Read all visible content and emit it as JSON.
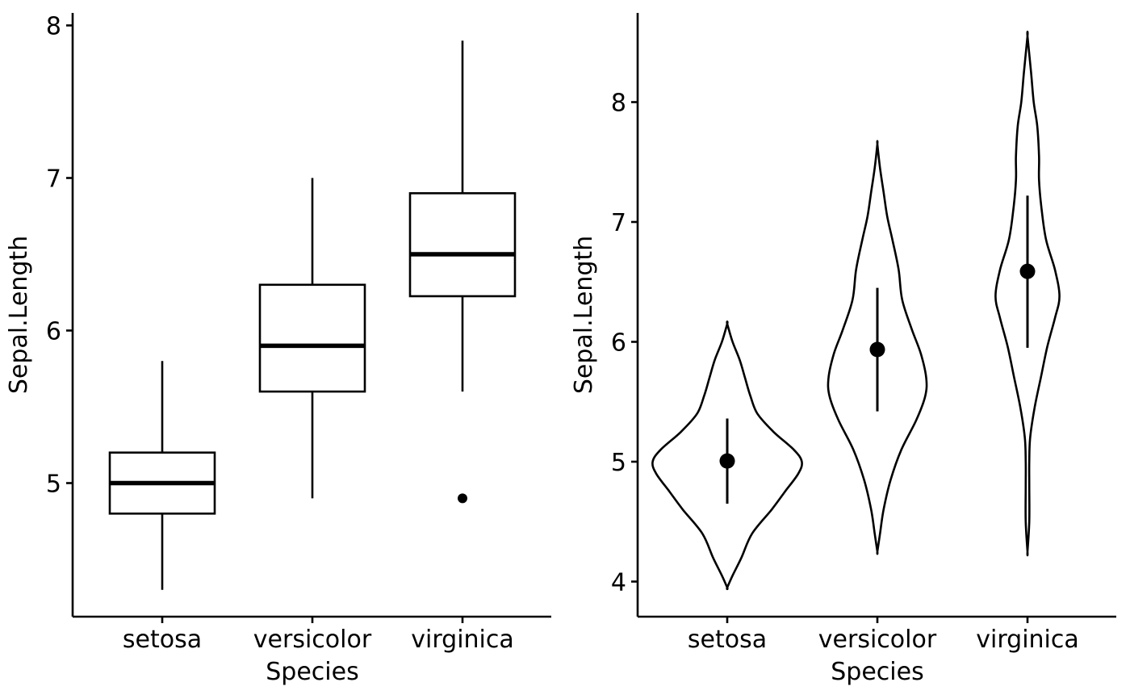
{
  "chart_data": [
    {
      "type": "box",
      "xlabel": "Species",
      "ylabel": "Sepal.Length",
      "ylim": [
        4.0,
        8.0
      ],
      "yticks": [
        "5",
        "6",
        "7",
        "8"
      ],
      "categories": [
        "setosa",
        "versicolor",
        "virginica"
      ],
      "boxes": [
        {
          "min": 4.3,
          "q1": 4.8,
          "median": 5.0,
          "q3": 5.2,
          "max": 5.8,
          "outliers": []
        },
        {
          "min": 4.9,
          "q1": 5.6,
          "median": 5.9,
          "q3": 6.3,
          "max": 7.0,
          "outliers": []
        },
        {
          "min": 5.6,
          "q1": 6.225,
          "median": 6.5,
          "q3": 6.9,
          "max": 7.9,
          "outliers": [
            4.9
          ]
        }
      ],
      "grid": false,
      "legend": "none"
    },
    {
      "type": "violin",
      "xlabel": "Species",
      "ylabel": "Sepal.Length",
      "ylim": [
        3.8,
        8.6
      ],
      "yticks": [
        "4",
        "5",
        "6",
        "7",
        "8"
      ],
      "categories": [
        "setosa",
        "versicolor",
        "virginica"
      ],
      "violins": [
        {
          "range": [
            3.95,
            6.15
          ],
          "profile": [
            [
              3.95,
              0.0
            ],
            [
              4.05,
              0.06
            ],
            [
              4.2,
              0.16
            ],
            [
              4.4,
              0.28
            ],
            [
              4.6,
              0.5
            ],
            [
              4.75,
              0.65
            ],
            [
              4.9,
              0.8
            ],
            [
              5.0,
              0.84
            ],
            [
              5.1,
              0.75
            ],
            [
              5.25,
              0.52
            ],
            [
              5.4,
              0.34
            ],
            [
              5.55,
              0.26
            ],
            [
              5.7,
              0.2
            ],
            [
              5.85,
              0.14
            ],
            [
              6.0,
              0.06
            ],
            [
              6.15,
              0.0
            ]
          ],
          "mean": 5.006,
          "sd_low": 4.65,
          "sd_high": 5.36
        },
        {
          "range": [
            4.25,
            7.65
          ],
          "profile": [
            [
              4.25,
              0.0
            ],
            [
              4.4,
              0.03
            ],
            [
              4.6,
              0.07
            ],
            [
              4.85,
              0.15
            ],
            [
              5.1,
              0.27
            ],
            [
              5.35,
              0.44
            ],
            [
              5.55,
              0.54
            ],
            [
              5.7,
              0.55
            ],
            [
              5.9,
              0.49
            ],
            [
              6.1,
              0.39
            ],
            [
              6.35,
              0.28
            ],
            [
              6.6,
              0.24
            ],
            [
              6.85,
              0.17
            ],
            [
              7.05,
              0.11
            ],
            [
              7.25,
              0.07
            ],
            [
              7.45,
              0.03
            ],
            [
              7.65,
              0.0
            ]
          ],
          "mean": 5.936,
          "sd_low": 5.42,
          "sd_high": 6.45
        },
        {
          "range": [
            4.25,
            8.55
          ],
          "profile": [
            [
              4.25,
              0.0
            ],
            [
              4.5,
              0.02
            ],
            [
              4.8,
              0.02
            ],
            [
              5.0,
              0.02
            ],
            [
              5.2,
              0.03
            ],
            [
              5.45,
              0.08
            ],
            [
              5.7,
              0.15
            ],
            [
              5.95,
              0.22
            ],
            [
              6.2,
              0.31
            ],
            [
              6.38,
              0.36
            ],
            [
              6.6,
              0.31
            ],
            [
              6.85,
              0.21
            ],
            [
              7.1,
              0.16
            ],
            [
              7.35,
              0.13
            ],
            [
              7.55,
              0.13
            ],
            [
              7.8,
              0.11
            ],
            [
              8.0,
              0.07
            ],
            [
              8.25,
              0.04
            ],
            [
              8.55,
              0.0
            ]
          ],
          "mean": 6.588,
          "sd_low": 5.95,
          "sd_high": 7.22
        }
      ],
      "grid": false,
      "legend": "none"
    }
  ]
}
